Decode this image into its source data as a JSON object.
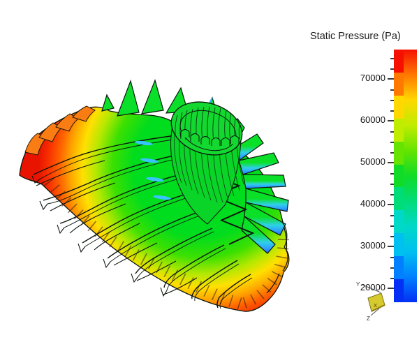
{
  "scene": {
    "background": "#ffffff",
    "type": "3D CFD post-processing viewport",
    "description": "Centrifugal compressor impeller (bladed rotor) shown in isometric view, surface-contoured by static pressure with a rainbow colormap"
  },
  "legend": {
    "title": "Static Pressure (Pa)",
    "units": "Pa",
    "tick_labels": [
      "70000",
      "60000",
      "50000",
      "40000",
      "30000",
      "20000"
    ],
    "minor_tick_step_pa": 2500,
    "band_colors_top_to_bottom": [
      "#f51000",
      "#ff7800",
      "#ffd800",
      "#c0ec00",
      "#64e400",
      "#10dc28",
      "#00dc78",
      "#00d8c8",
      "#00c0f0",
      "#0080ff",
      "#0330f5"
    ],
    "gradient_stops_top_to_bottom": [
      "#f51000",
      "#ff7800",
      "#ffd800",
      "#c0ec00",
      "#64e400",
      "#10dc28",
      "#00dc78",
      "#00d8c8",
      "#00c0f0",
      "#0080ff",
      "#0330f5"
    ]
  },
  "triad": {
    "x_label": "X",
    "y_label": "Y",
    "z_label": "Z",
    "x_face_color": "#d6ca2e"
  },
  "impeller": {
    "body_green": "#00dc1e",
    "mid_yellow": "#ffe000",
    "rim_orange": "#ff7800",
    "rim_red": "#e81400",
    "suction_cyan": "#30c0ff",
    "edge_blue": "#1766ff",
    "hub_green": "#0ad428",
    "outline": "#0c150c",
    "visible_main_blades": 9,
    "visible_right_fan_blades": 7
  },
  "chart_data": {
    "type": "heatmap",
    "title": "Static Pressure (Pa)",
    "variable": "Static Pressure",
    "units": "Pa",
    "colormap": "rainbow (blue - cyan - green - yellow - orange - red)",
    "colorbar_tick_values": [
      70000,
      60000,
      50000,
      40000,
      30000,
      20000
    ],
    "colorbar_minor_tick_step": 2500,
    "approx_data_range_pa": [
      16500,
      77000
    ],
    "geometry": "centrifugal compressor impeller, isometric 3D view",
    "legend_position": "right",
    "regions": [
      {
        "region": "backplate outer rim (lower-left and bottom-right edges)",
        "approx_pressure_pa": [
          68000,
          77000
        ],
        "appearance": "orange-red"
      },
      {
        "region": "backplate mid-radius band",
        "approx_pressure_pa": [
          52000,
          64000
        ],
        "appearance": "yellow"
      },
      {
        "region": "blade surfaces, hub cylinder and upper body",
        "approx_pressure_pa": [
          40000,
          50000
        ],
        "appearance": "green"
      },
      {
        "region": "blade leading edges / suction sides (right-hand blade fan)",
        "approx_pressure_pa": [
          20000,
          32000
        ],
        "appearance": "cyan-blue"
      }
    ]
  }
}
